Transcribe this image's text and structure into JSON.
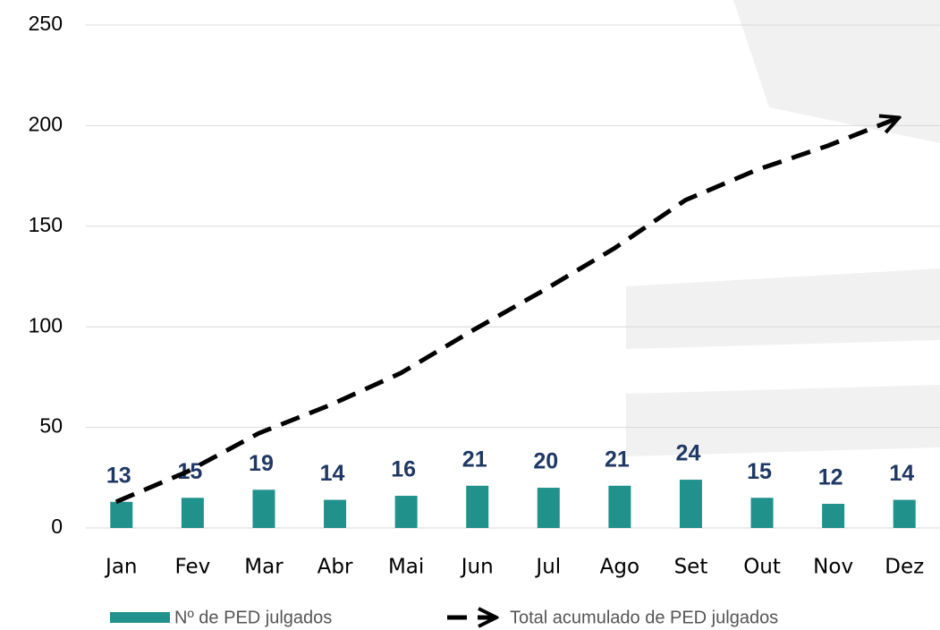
{
  "chart_data": {
    "type": "bar",
    "categories": [
      "Jan",
      "Fev",
      "Mar",
      "Abr",
      "Mai",
      "Jun",
      "Jul",
      "Ago",
      "Set",
      "Out",
      "Nov",
      "Dez"
    ],
    "series": [
      {
        "name": "Nº de PED julgados",
        "type": "bar",
        "color": "#21918c",
        "values": [
          13,
          15,
          19,
          14,
          16,
          21,
          20,
          21,
          24,
          15,
          12,
          14
        ]
      },
      {
        "name": "Total acumulado de PED julgados",
        "type": "line",
        "color": "#000000",
        "values": [
          13,
          28,
          47,
          61,
          77,
          98,
          118,
          139,
          163,
          178,
          190,
          204
        ]
      }
    ],
    "ylim": [
      0,
      250
    ],
    "yticks": [
      0,
      50,
      100,
      150,
      200,
      250
    ],
    "grid": true,
    "legend": "bottom"
  }
}
